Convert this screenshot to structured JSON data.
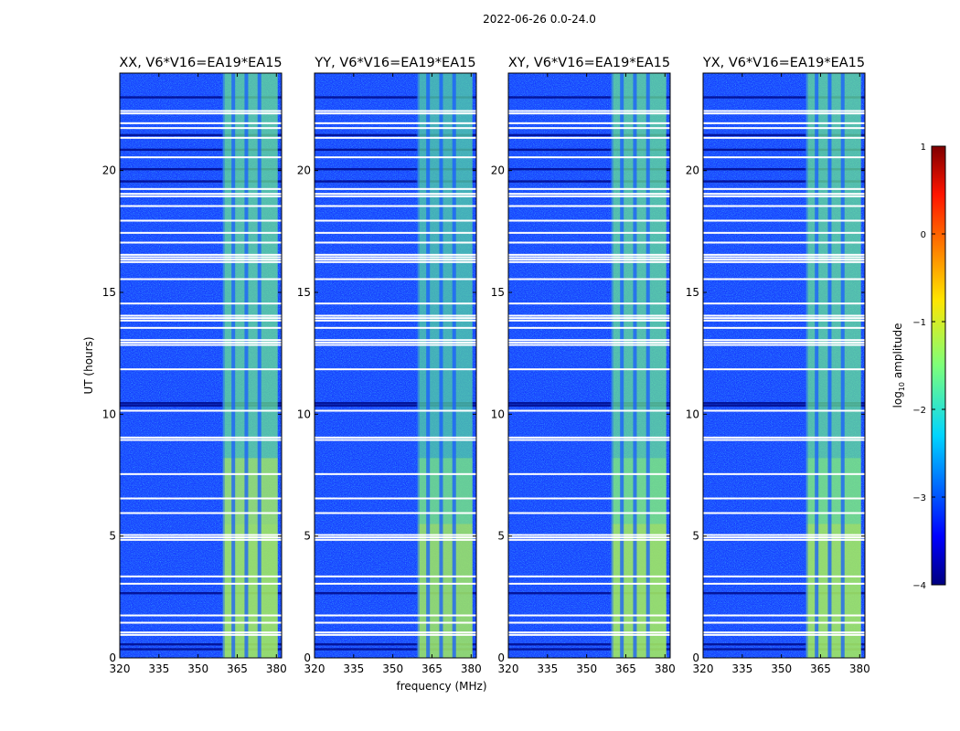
{
  "title": "2022-06-26 0.0-24.0",
  "chart_data": {
    "type": "heatmap",
    "title": "2022-06-26 0.0-24.0",
    "xlabel": "frequency (MHz)",
    "ylabel": "UT (hours)",
    "xlim": [
      320,
      382
    ],
    "ylim": [
      0,
      24
    ],
    "xticks": [
      320,
      335,
      350,
      365,
      380
    ],
    "yticks": [
      0,
      5,
      10,
      15,
      20
    ],
    "panels": [
      {
        "name": "XX",
        "title": "XX, V6*V16=EA19*EA15"
      },
      {
        "name": "YY",
        "title": "YY, V6*V16=EA19*EA15"
      },
      {
        "name": "XY",
        "title": "XY, V6*V16=EA19*EA15"
      },
      {
        "name": "YX",
        "title": "YX, V6*V16=EA19*EA15"
      }
    ],
    "bright_band_mhz": [
      359.5,
      380.5
    ],
    "bright_channel_gaps_mhz": [
      363.5,
      368.5,
      373.5
    ],
    "flagged_rows_hours": [
      0.95,
      1.05,
      1.45,
      1.75,
      3.05,
      3.35,
      4.85,
      4.95,
      5.05,
      5.95,
      6.55,
      7.55,
      8.95,
      9.05,
      10.15,
      11.85,
      12.85,
      12.95,
      13.05,
      13.55,
      13.85,
      13.95,
      14.05,
      14.55,
      15.55,
      16.25,
      16.35,
      16.45,
      16.55,
      17.05,
      17.45,
      17.95,
      18.55,
      18.95,
      19.05,
      19.25,
      20.55,
      21.35,
      21.75,
      21.95,
      22.35,
      22.45
    ],
    "dark_rows_hours": [
      0.35,
      0.55,
      2.65,
      10.35,
      10.45,
      19.55,
      20.05,
      20.85,
      21.45,
      23.0
    ],
    "colorbar": {
      "label": "log10 amplitude",
      "label_prefix": "log",
      "label_sub": "10",
      "label_suffix": " amplitude",
      "min": -4,
      "max": 1,
      "ticks": [
        "1",
        "0",
        "−1",
        "−2",
        "−3",
        "−4"
      ],
      "colormap": "jet"
    }
  }
}
